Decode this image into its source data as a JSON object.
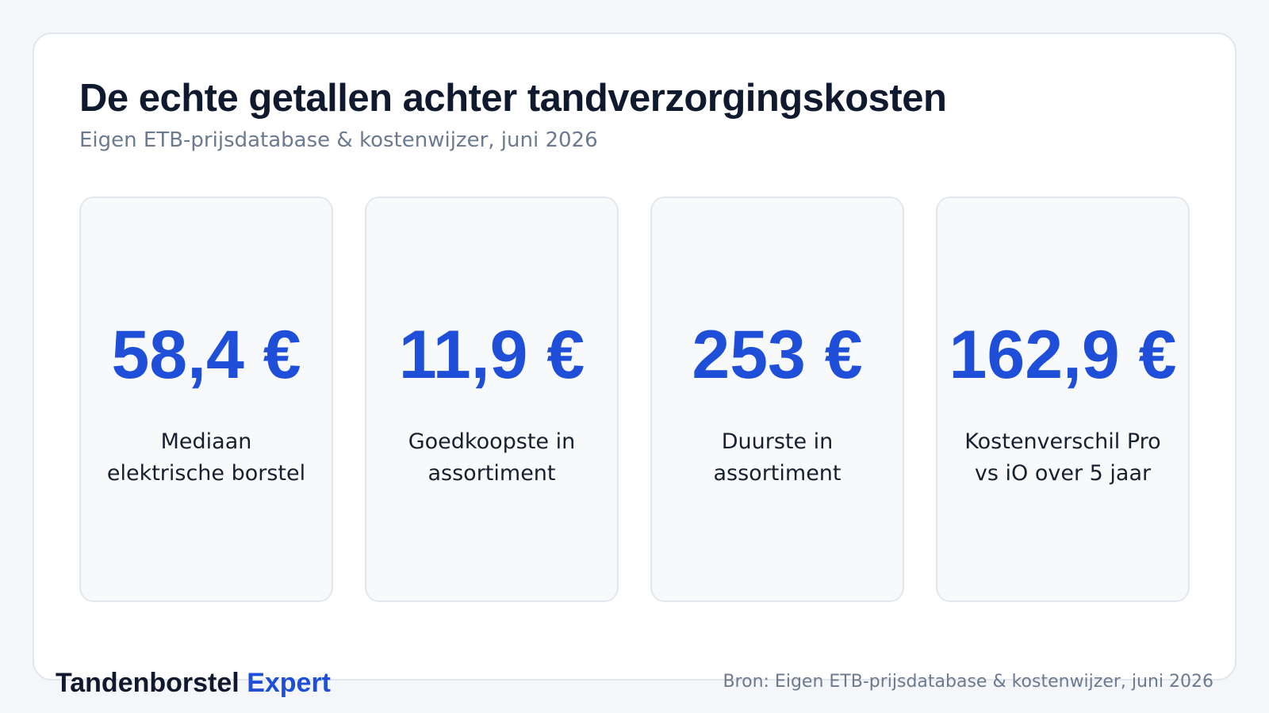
{
  "header": {
    "title": "De echte getallen achter tandverzorgingskosten",
    "subtitle": "Eigen ETB-prijsdatabase & kostenwijzer, juni 2026"
  },
  "stats": [
    {
      "value": "58,4 €",
      "label": "Mediaan elektrische borstel"
    },
    {
      "value": "11,9 €",
      "label": "Goedkoopste in assortiment"
    },
    {
      "value": "253 €",
      "label": "Duurste in assortiment"
    },
    {
      "value": "162,9 €",
      "label": "Kostenverschil Pro vs iO over 5 jaar"
    }
  ],
  "footer": {
    "brand_part1": "Tandenborstel",
    "brand_part2": "Expert",
    "source": "Bron: Eigen ETB-prijsdatabase & kostenwijzer, juni 2026"
  },
  "colors": {
    "accent": "#1f4fd8",
    "text_dark": "#0f1a2e",
    "text_muted": "#6b7a8f",
    "card_bg": "#f7f9fb",
    "page_bg": "#f4f6f9"
  }
}
